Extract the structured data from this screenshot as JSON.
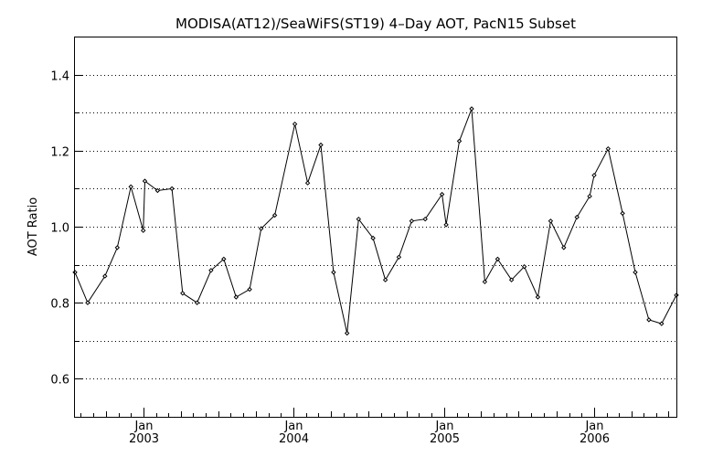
{
  "chart_data": {
    "type": "line",
    "title": "MODISA(AT12)/SeaWiFS(ST19) 4–Day AOT, PacN15 Subset",
    "ylabel": "AOT Ratio",
    "xlabel": "",
    "xlim": [
      "2002-07-18",
      "2006-07-20"
    ],
    "ylim": [
      0.5,
      1.5
    ],
    "yticks": [
      0.6,
      0.8,
      1.0,
      1.2,
      1.4
    ],
    "ytick_labels": [
      "0.6",
      "0.8",
      "1.0",
      "1.2",
      "1.4"
    ],
    "xticks": [
      "2003-01-01",
      "2004-01-01",
      "2005-01-01",
      "2006-01-01"
    ],
    "xtick_month_labels": [
      "Jan",
      "Jan",
      "Jan",
      "Jan"
    ],
    "xtick_year_labels": [
      "2003",
      "2004",
      "2005",
      "2006"
    ],
    "grid": true,
    "series": [
      {
        "x": [
          "2002-07-18",
          "2002-08-18",
          "2002-09-29",
          "2002-10-29",
          "2002-12-01",
          "2002-12-31",
          "2003-01-04",
          "2003-02-04",
          "2003-03-11",
          "2003-04-06",
          "2003-05-11",
          "2003-06-14",
          "2003-07-15",
          "2003-08-14",
          "2003-09-16",
          "2003-10-14",
          "2003-11-16",
          "2004-01-04",
          "2004-02-04",
          "2004-03-07",
          "2004-04-07",
          "2004-05-10",
          "2004-06-07",
          "2004-07-12",
          "2004-08-11",
          "2004-09-13",
          "2004-10-14",
          "2004-11-16",
          "2004-12-27",
          "2005-01-06",
          "2005-02-07",
          "2005-03-09",
          "2005-04-10",
          "2005-05-11",
          "2005-06-14",
          "2005-07-15",
          "2005-08-17",
          "2005-09-17",
          "2005-10-19",
          "2005-11-20",
          "2005-12-21",
          "2006-01-01",
          "2006-02-04",
          "2006-03-11",
          "2006-04-11",
          "2006-05-14",
          "2006-06-14",
          "2006-07-20"
        ],
        "y": [
          0.88,
          0.8,
          0.87,
          0.945,
          1.105,
          0.99,
          1.12,
          1.095,
          1.1,
          0.825,
          0.8,
          0.885,
          0.915,
          0.815,
          0.835,
          0.995,
          1.03,
          1.27,
          1.115,
          1.215,
          0.88,
          0.72,
          1.02,
          0.97,
          0.86,
          0.92,
          1.015,
          1.02,
          1.085,
          1.005,
          1.225,
          1.31,
          0.855,
          0.915,
          0.86,
          0.895,
          0.815,
          1.015,
          0.945,
          1.025,
          1.08,
          1.135,
          1.205,
          1.035,
          0.88,
          0.755,
          0.745,
          0.82
        ]
      }
    ]
  }
}
